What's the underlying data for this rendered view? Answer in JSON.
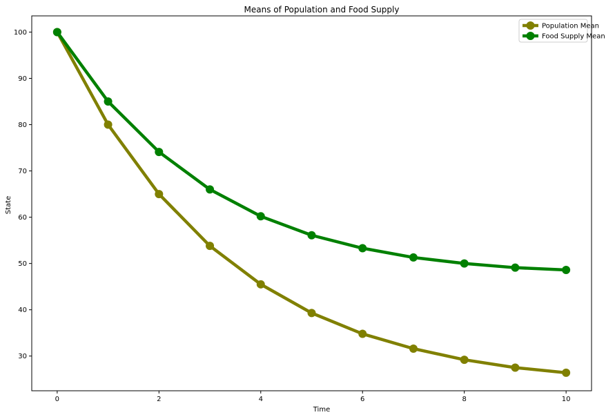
{
  "chart_data": {
    "type": "line",
    "title": "Means of Population and Food Supply",
    "xlabel": "Time",
    "ylabel": "State",
    "xlim": [
      -0.5,
      10.5
    ],
    "ylim": [
      22.5,
      103.5
    ],
    "xticks": [
      0,
      2,
      4,
      6,
      8,
      10
    ],
    "yticks": [
      30,
      40,
      50,
      60,
      70,
      80,
      90,
      100
    ],
    "grid": false,
    "legend": "top-right",
    "x": [
      0,
      1,
      2,
      3,
      4,
      5,
      6,
      7,
      8,
      9,
      10
    ],
    "series": [
      {
        "name": "Population Mean",
        "color": "#808000",
        "values": [
          100,
          80,
          65,
          53.8,
          45.5,
          39.3,
          34.8,
          31.6,
          29.2,
          27.5,
          26.4
        ]
      },
      {
        "name": "Food Supply Mean",
        "color": "#008000",
        "values": [
          100,
          85,
          74.1,
          66,
          60.2,
          56.1,
          53.3,
          51.3,
          50,
          49.1,
          48.6
        ]
      }
    ]
  }
}
